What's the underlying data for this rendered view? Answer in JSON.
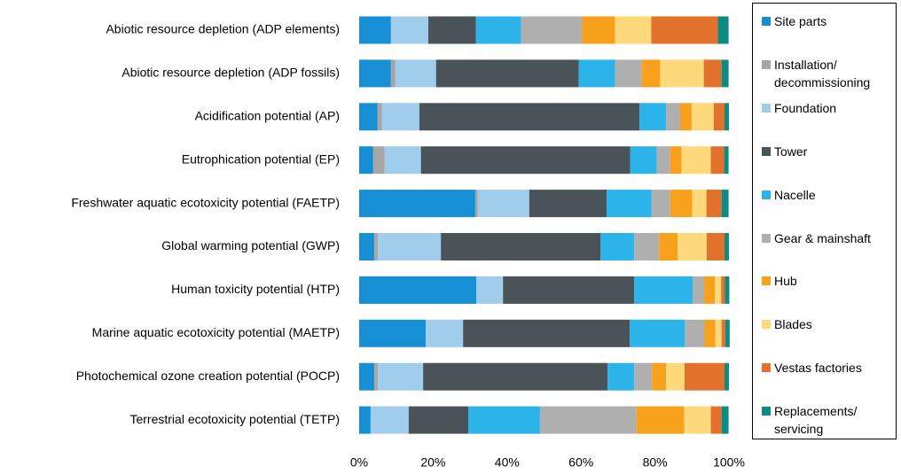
{
  "chart_data": {
    "type": "stacked-bar-horizontal",
    "categories": [
      "Abiotic resource depletion (ADP elements)",
      "Abiotic resource depletion (ADP fossils)",
      "Acidification potential (AP)",
      "Eutrophication potential (EP)",
      "Freshwater aquatic ecotoxicity potential (FAETP)",
      "Global warming potential (GWP)",
      "Human toxicity potential (HTP)",
      "Marine aquatic ecotoxicity potential (MAETP)",
      "Photochemical ozone creation potential (POCP)",
      "Terrestrial ecotoxicity potential (TETP)"
    ],
    "series": [
      {
        "name": "Site parts",
        "color": "#178fd4",
        "values": [
          8.6,
          8.6,
          5,
          3.8,
          31.4,
          4.1,
          31.7,
          18,
          4.1,
          3.1
        ]
      },
      {
        "name": "Installation/ decommissioning",
        "color": "#a6a6a6",
        "values": [
          0,
          1.2,
          1.2,
          3.1,
          0.7,
          1,
          0,
          0,
          1,
          0
        ]
      },
      {
        "name": "Foundation",
        "color": "#9fcdeb",
        "values": [
          10.1,
          11,
          10.1,
          9.8,
          13.9,
          17,
          7.2,
          10.1,
          12.2,
          10.3
        ]
      },
      {
        "name": "Tower",
        "color": "#4a5358",
        "values": [
          12.9,
          38.6,
          59.5,
          56.6,
          20.9,
          43.2,
          35.5,
          45.1,
          49.9,
          16.1
        ]
      },
      {
        "name": "Nacelle",
        "color": "#2cb4ea",
        "values": [
          12.2,
          9.8,
          7.2,
          7.2,
          12.2,
          9.1,
          15.8,
          14.9,
          7.2,
          19.4
        ]
      },
      {
        "name": "Gear & mainshaft",
        "color": "#afafaf",
        "values": [
          16.5,
          7.2,
          3.8,
          3.6,
          5,
          6.7,
          3.1,
          5.3,
          4.8,
          26.1
        ]
      },
      {
        "name": "Hub",
        "color": "#f7a11c",
        "values": [
          8.9,
          5,
          3.1,
          3.1,
          6,
          5,
          2.9,
          2.9,
          3.8,
          12.9
        ]
      },
      {
        "name": "Blades",
        "color": "#fdd97b",
        "values": [
          9.8,
          11.8,
          6,
          7.9,
          3.8,
          7.9,
          1.7,
          1.7,
          5,
          7.2
        ]
      },
      {
        "name": "Vestas factories",
        "color": "#e2712c",
        "values": [
          18,
          4.8,
          2.9,
          3.6,
          4.1,
          4.8,
          1,
          1,
          10.8,
          2.9
        ]
      },
      {
        "name": "Replacements/ servicing",
        "color": "#0f8a82",
        "values": [
          2.9,
          1.9,
          1.2,
          1.2,
          1.9,
          1.2,
          1.2,
          1.2,
          1.2,
          1.9
        ]
      }
    ],
    "xlim": [
      0,
      100
    ],
    "xticks": [
      {
        "value": 0,
        "label": "0%"
      },
      {
        "value": 20,
        "label": "20%"
      },
      {
        "value": 40,
        "label": "40%"
      },
      {
        "value": 60,
        "label": "60%"
      },
      {
        "value": 80,
        "label": "80%"
      },
      {
        "value": 100,
        "label": "100%"
      }
    ],
    "legend": "right"
  }
}
